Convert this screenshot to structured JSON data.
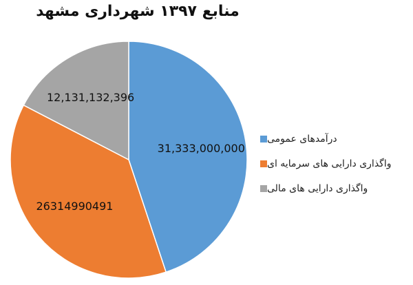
{
  "chart_data": {
    "type": "pie",
    "title": "منابع ۱۳۹۷ شهرداری مشهد",
    "slices": [
      {
        "label": "درآمدهای عمومی",
        "value": 31333000000,
        "value_label": "31,333,000,000",
        "color": "#5b9bd5"
      },
      {
        "label": "واگذاری دارایی های سرمایه ای",
        "value": 26314990491,
        "value_label": "26314990491",
        "color": "#ed7d31"
      },
      {
        "label": "واگذاری دارایی های مالی",
        "value": 12131132396,
        "value_label": "12,131,132,396",
        "color": "#a5a5a5"
      }
    ],
    "legend_position": "right"
  }
}
